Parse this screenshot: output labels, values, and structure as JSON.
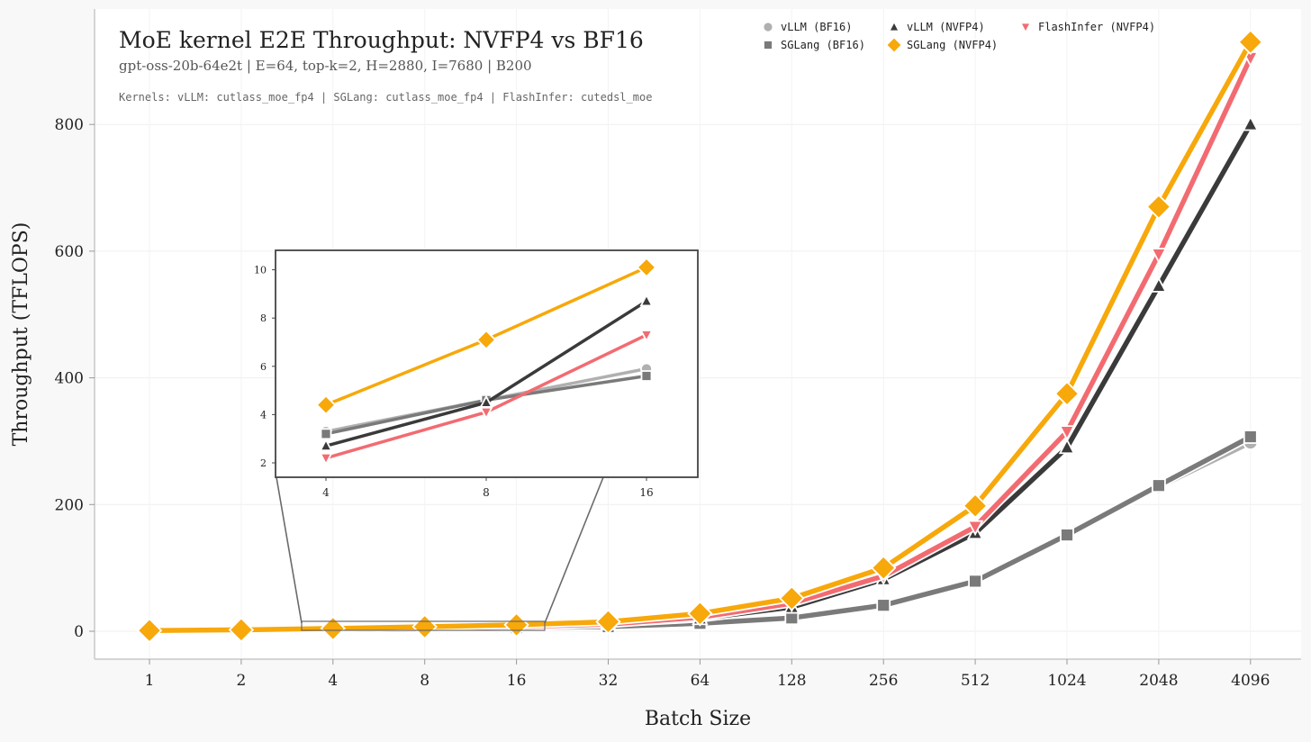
{
  "chart_data": {
    "type": "line",
    "title": "MoE kernel E2E Throughput: NVFP4 vs BF16",
    "subtitle": "gpt-oss-20b-64e2t | E=64, top-k=2, H=2880, I=7680 | B200",
    "note": "Kernels: vLLM: cutlass_moe_fp4 | SGLang: cutlass_moe_fp4 | FlashInfer: cutedsl_moe",
    "xlabel": "Batch Size",
    "ylabel": "Throughput (TFLOPS)",
    "ylim": [
      -45,
      985
    ],
    "yticks": [
      0,
      200,
      400,
      600,
      800
    ],
    "legend_position": "top-right",
    "categories": [
      "1",
      "2",
      "4",
      "8",
      "16",
      "32",
      "64",
      "128",
      "256",
      "512",
      "1024",
      "2048",
      "4096"
    ],
    "series": [
      {
        "name": "vLLM (BF16)",
        "color": "#b0b0b0",
        "marker": "circle",
        "values": [
          0.8,
          1.6,
          3.3,
          4.6,
          5.9,
          7.2,
          12,
          21,
          42,
          79,
          152,
          228,
          298
        ]
      },
      {
        "name": "SGLang (BF16)",
        "color": "#7a7a7a",
        "marker": "square",
        "values": [
          0.8,
          1.6,
          3.2,
          4.6,
          5.6,
          7.2,
          12.5,
          21,
          41,
          79,
          152,
          230,
          307
        ]
      },
      {
        "name": "vLLM (NVFP4)",
        "color": "#3a3a3a",
        "marker": "triangle-up",
        "values": [
          0.7,
          1.4,
          2.7,
          4.5,
          8.7,
          12,
          20,
          38,
          82,
          155,
          290,
          545,
          800
        ]
      },
      {
        "name": "FlashInfer (NVFP4)",
        "color": "#f26b71",
        "marker": "triangle-down",
        "values": [
          0.6,
          1.2,
          2.2,
          4.1,
          7.3,
          11,
          22,
          44,
          87,
          165,
          315,
          595,
          905
        ]
      },
      {
        "name": "SGLang (NVFP4)",
        "color": "#f7a80a",
        "marker": "diamond",
        "values": [
          1.1,
          2.2,
          4.4,
          7.1,
          10.1,
          15,
          28,
          52,
          100,
          198,
          375,
          670,
          930
        ]
      }
    ],
    "inset": {
      "categories": [
        "4",
        "8",
        "16"
      ],
      "yticks": [
        2,
        4,
        6,
        8,
        10
      ],
      "ylim": [
        1.5,
        10.8
      ]
    }
  }
}
